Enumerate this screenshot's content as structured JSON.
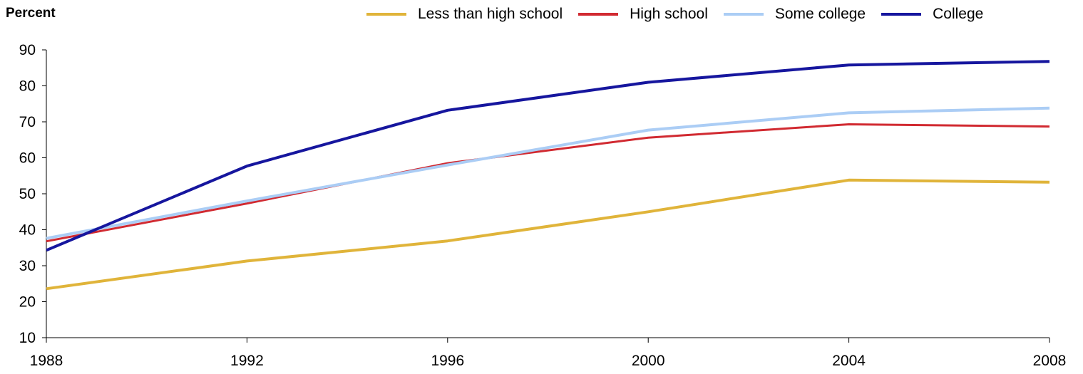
{
  "chart_data": {
    "type": "line",
    "title": "",
    "xlabel": "",
    "ylabel": "Percent",
    "x": [
      1988,
      1992,
      1996,
      2000,
      2004,
      2008
    ],
    "x_tick_labels": [
      "1988",
      "1992",
      "1996",
      "2000",
      "2004",
      "2008"
    ],
    "ylim": [
      10,
      90
    ],
    "y_ticks": [
      10,
      20,
      30,
      40,
      50,
      60,
      70,
      80,
      90
    ],
    "y_tick_labels": [
      "10",
      "20",
      "30",
      "40",
      "50",
      "60",
      "70",
      "80",
      "90"
    ],
    "grid": false,
    "legend_position": "top-right",
    "series": [
      {
        "name": "Less than high school",
        "color": "#E0B43A",
        "values": [
          23.6,
          31.3,
          36.9,
          45.0,
          53.8,
          53.2
        ]
      },
      {
        "name": "High school",
        "color": "#D12A31",
        "values": [
          36.8,
          47.3,
          58.5,
          65.6,
          69.3,
          68.7
        ]
      },
      {
        "name": "Some college",
        "color": "#ABCDF5",
        "values": [
          37.6,
          48.0,
          58.0,
          67.7,
          72.5,
          73.8
        ]
      },
      {
        "name": "College",
        "color": "#16169E",
        "values": [
          34.3,
          57.7,
          73.2,
          81.0,
          85.8,
          86.8
        ]
      }
    ]
  }
}
